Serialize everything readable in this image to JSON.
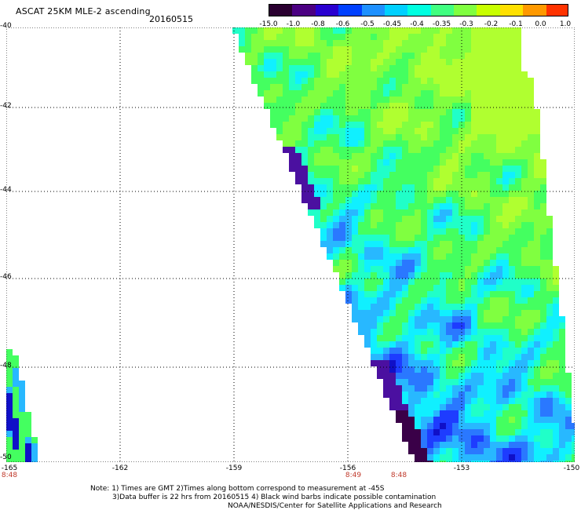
{
  "header": {
    "title": "ASCAT 25KM MLE-2 ascending",
    "date": "20160515"
  },
  "colorbar": {
    "labels": [
      "-15.0",
      "-1.0",
      "-0.8",
      "-0.6",
      "-0.5",
      "-0.45",
      "-0.4",
      "-0.35",
      "-0.3",
      "-0.2",
      "-0.1",
      "0.0",
      "1.0"
    ],
    "colors": [
      "#2a0030",
      "#4b0082",
      "#2a00d0",
      "#0040ff",
      "#1e90ff",
      "#00d0ff",
      "#00ffe0",
      "#40ff80",
      "#80ff40",
      "#c8ff00",
      "#ffe000",
      "#ff9900",
      "#ff3300"
    ]
  },
  "map": {
    "y_axis_labels": [
      "-40",
      "-42",
      "-44",
      "-46",
      "-48",
      "-50"
    ],
    "x_axis_labels": [
      "-165",
      "-162",
      "-159",
      "-156",
      "-153",
      "-150"
    ],
    "time_labels": [
      "8:48",
      "8:49",
      "8:48"
    ],
    "grid": "dotted"
  },
  "footer": {
    "line1": "Note: 1) Times are GMT 2)Times along bottom correspond to measurement at -45S",
    "line2": "3)Data buffer is 22 hrs from 20160515 4) Black wind barbs indicate possible contamination",
    "line3": "NOAA/NESDIS/Center for Satellite Applications and Research"
  }
}
